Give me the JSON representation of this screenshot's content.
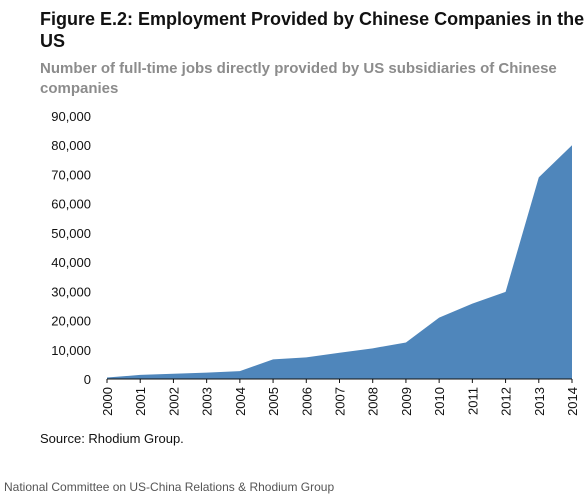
{
  "title": "Figure E.2: Employment Provided by Chinese Companies in the US",
  "subtitle": "Number of full-time jobs directly provided by US subsidiaries of Chinese companies",
  "source": "Source: Rhodium Group.",
  "credit": "National Committee on US-China Relations & Rhodium Group",
  "colors": {
    "area_fill": "#4f86bb",
    "axis": "#111111"
  },
  "chart_data": {
    "type": "area",
    "title": "Figure E.2: Employment Provided by Chinese Companies in the US",
    "subtitle": "Number of full-time jobs directly provided by US subsidiaries of Chinese companies",
    "xlabel": "",
    "ylabel": "",
    "x": [
      "2000",
      "2001",
      "2002",
      "2003",
      "2004",
      "2005",
      "2006",
      "2007",
      "2008",
      "2009",
      "2010",
      "2011",
      "2012",
      "2013",
      "2014"
    ],
    "series": [
      {
        "values": [
          500,
          1400,
          1800,
          2200,
          2700,
          6700,
          7400,
          9000,
          10500,
          12500,
          21000,
          25800,
          29800,
          69000,
          80000
        ]
      }
    ],
    "ylim": [
      0,
      90000
    ],
    "y_ticks": [
      "0",
      "10,000",
      "20,000",
      "30,000",
      "40,000",
      "50,000",
      "60,000",
      "70,000",
      "80,000",
      "90,000"
    ],
    "grid": false,
    "legend": "none"
  }
}
